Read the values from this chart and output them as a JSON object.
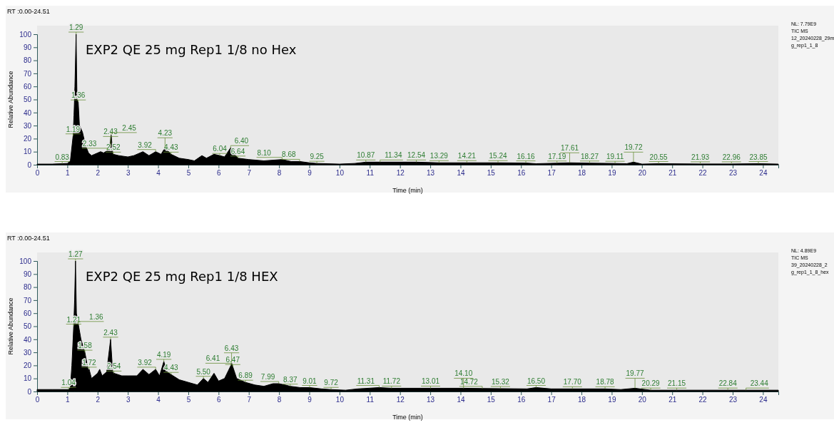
{
  "chart_data": [
    {
      "type": "area",
      "xlabel": "Time (min)",
      "ylabel": "Relative Abundance",
      "xlim": [
        0,
        24.51
      ],
      "ylim": [
        0,
        100
      ],
      "xticks": [
        0,
        1,
        2,
        3,
        4,
        5,
        6,
        7,
        8,
        9,
        10,
        11,
        12,
        13,
        14,
        15,
        16,
        17,
        18,
        19,
        20,
        21,
        22,
        23,
        24
      ],
      "yticks": [
        0,
        10,
        20,
        30,
        40,
        50,
        60,
        70,
        80,
        90,
        100
      ],
      "color": "#000000",
      "x": [
        0,
        0.5,
        0.83,
        1.0,
        1.1,
        1.19,
        1.22,
        1.25,
        1.29,
        1.32,
        1.36,
        1.4,
        1.5,
        1.6,
        1.7,
        1.8,
        1.9,
        2.0,
        2.1,
        2.2,
        2.33,
        2.4,
        2.45,
        2.5,
        2.52,
        2.7,
        3.0,
        3.2,
        3.5,
        3.7,
        3.92,
        4.1,
        4.23,
        4.43,
        4.7,
        5.0,
        5.2,
        5.45,
        5.6,
        5.85,
        6.04,
        6.2,
        6.4,
        6.5,
        6.64,
        7.0,
        7.5,
        8.1,
        8.4,
        8.68,
        9.0,
        9.25,
        10.0,
        10.5,
        10.87,
        11.34,
        12.54,
        13.29,
        14.21,
        15.24,
        16.16,
        16.5,
        17.19,
        17.61,
        18.27,
        19.11,
        19.5,
        19.72,
        20.0,
        20.55,
        21.93,
        22.96,
        23.85,
        24.51
      ],
      "values": [
        0.5,
        0.5,
        0.8,
        1,
        3,
        22,
        38,
        60,
        100,
        50,
        48,
        30,
        25,
        15,
        9,
        7,
        8,
        9,
        10,
        9,
        11,
        14,
        23,
        9,
        8,
        7,
        6,
        7,
        10,
        7,
        10,
        8,
        13,
        8,
        5,
        4,
        3,
        7,
        5,
        8,
        7,
        6,
        13,
        9,
        5,
        4,
        3,
        4,
        2.5,
        2.5,
        1.5,
        1,
        0.5,
        1,
        2,
        2,
        2,
        1.5,
        1.5,
        1.5,
        1.3,
        0.8,
        1.2,
        1.5,
        1.2,
        1,
        0.8,
        2,
        0.5,
        0.8,
        0.6,
        0.6,
        0.8,
        0.5
      ],
      "annotations": [
        "RT :0.00-24.51",
        "EXP2 QE 25 mg Rep1 1/8 no Hex",
        "NL: 7.79E9",
        "TIC  MS",
        "12_20240228_29m",
        "g_rep1_1_8",
        {
          "text": "0.83",
          "x": 0.83,
          "y": 0.8
        },
        {
          "text": "1.19",
          "x": 1.19,
          "y": 22
        },
        {
          "text": "1.29",
          "x": 1.29,
          "y": 100
        },
        {
          "text": "1.36",
          "x": 1.36,
          "y": 48
        },
        {
          "text": "2.33",
          "x": 2.33,
          "y": 11
        },
        {
          "text": "2.43",
          "x": 2.43,
          "y": 14
        },
        {
          "text": "2.45",
          "x": 2.45,
          "y": 23
        },
        {
          "text": "2.52",
          "x": 2.52,
          "y": 8
        },
        {
          "text": "3.92",
          "x": 3.92,
          "y": 10
        },
        {
          "text": "4.23",
          "x": 4.23,
          "y": 13
        },
        {
          "text": "4.43",
          "x": 4.43,
          "y": 8
        },
        {
          "text": "6.04",
          "x": 6.04,
          "y": 7
        },
        {
          "text": "6.40",
          "x": 6.4,
          "y": 13
        },
        {
          "text": "6.64",
          "x": 6.64,
          "y": 5
        },
        {
          "text": "8.10",
          "x": 8.1,
          "y": 4
        },
        {
          "text": "8.68",
          "x": 8.68,
          "y": 2.5
        },
        {
          "text": "9.25",
          "x": 9.25,
          "y": 1
        },
        {
          "text": "10.87",
          "x": 10.87,
          "y": 2
        },
        {
          "text": "11.34",
          "x": 11.34,
          "y": 2
        },
        {
          "text": "12.54",
          "x": 12.54,
          "y": 2
        },
        {
          "text": "13.29",
          "x": 13.29,
          "y": 1.5
        },
        {
          "text": "14.21",
          "x": 14.21,
          "y": 1.5
        },
        {
          "text": "15.24",
          "x": 15.24,
          "y": 1.5
        },
        {
          "text": "16.16",
          "x": 16.16,
          "y": 1.3
        },
        {
          "text": "17.19",
          "x": 17.19,
          "y": 1.2
        },
        {
          "text": "17.61",
          "x": 17.61,
          "y": 1.5
        },
        {
          "text": "18.27",
          "x": 18.27,
          "y": 1.2
        },
        {
          "text": "19.11",
          "x": 19.11,
          "y": 1
        },
        {
          "text": "19.72",
          "x": 19.72,
          "y": 2
        },
        {
          "text": "20.55",
          "x": 20.55,
          "y": 0.8
        },
        {
          "text": "21.93",
          "x": 21.93,
          "y": 0.6
        },
        {
          "text": "22.96",
          "x": 22.96,
          "y": 0.6
        },
        {
          "text": "23.85",
          "x": 23.85,
          "y": 0.8
        }
      ]
    },
    {
      "type": "area",
      "xlabel": "Time (min)",
      "ylabel": "Relative Abundance",
      "xlim": [
        0,
        24.51
      ],
      "ylim": [
        0,
        100
      ],
      "xticks": [
        0,
        1,
        2,
        3,
        4,
        5,
        6,
        7,
        8,
        9,
        10,
        11,
        12,
        13,
        14,
        15,
        16,
        17,
        18,
        19,
        20,
        21,
        22,
        23,
        24
      ],
      "yticks": [
        0,
        10,
        20,
        30,
        40,
        50,
        60,
        70,
        80,
        90,
        100
      ],
      "color": "#000000",
      "x": [
        0,
        0.5,
        1.04,
        1.1,
        1.15,
        1.21,
        1.24,
        1.27,
        1.3,
        1.36,
        1.45,
        1.58,
        1.7,
        1.72,
        1.8,
        1.9,
        2.0,
        2.07,
        2.15,
        2.3,
        2.43,
        2.5,
        2.54,
        2.8,
        3.0,
        3.3,
        3.5,
        3.7,
        3.92,
        4.05,
        4.19,
        4.3,
        4.43,
        4.7,
        5.0,
        5.3,
        5.5,
        5.65,
        5.85,
        6.0,
        6.2,
        6.41,
        6.43,
        6.47,
        6.6,
        6.89,
        7.2,
        7.5,
        7.8,
        7.99,
        8.2,
        8.37,
        8.7,
        9.01,
        9.4,
        9.72,
        10.2,
        10.6,
        11.31,
        11.72,
        13.01,
        14.1,
        14.72,
        15.32,
        16.2,
        16.5,
        17.0,
        17.7,
        18.78,
        19.3,
        19.77,
        20.29,
        21.15,
        22.84,
        23.44,
        24.51
      ],
      "values": [
        1.5,
        1.5,
        1.5,
        3,
        20,
        50,
        70,
        100,
        60,
        52,
        40,
        30,
        15,
        17,
        10,
        12,
        14,
        17,
        12,
        15,
        40,
        15,
        14,
        12,
        12,
        12,
        17,
        13,
        17,
        12,
        23,
        15,
        13,
        9,
        7,
        5,
        10,
        7,
        14,
        8,
        10,
        20,
        22,
        19,
        10,
        7,
        5,
        4,
        6,
        6,
        5,
        4,
        3,
        3,
        2,
        1.5,
        1,
        2,
        3,
        2.5,
        2.5,
        2.5,
        2.3,
        2.2,
        2,
        3,
        2,
        2,
        2,
        1.5,
        2.5,
        1,
        1,
        1,
        1,
        1
      ],
      "annotations": [
        "RT :0.00-24.51",
        "EXP2 QE 25 mg Rep1 1/8 HEX",
        "NL: 4.89E9",
        "TIC  MS",
        "39_20240228_2",
        "g_rep1_1_8_hex",
        {
          "text": "1.04",
          "x": 1.04,
          "y": 1.5
        },
        {
          "text": "1.21",
          "x": 1.21,
          "y": 50
        },
        {
          "text": "1.27",
          "x": 1.27,
          "y": 100
        },
        {
          "text": "1.36",
          "x": 1.36,
          "y": 52
        },
        {
          "text": "1.58",
          "x": 1.58,
          "y": 30
        },
        {
          "text": "1.72",
          "x": 1.72,
          "y": 17
        },
        {
          "text": "2.43",
          "x": 2.43,
          "y": 40
        },
        {
          "text": "2.54",
          "x": 2.54,
          "y": 14
        },
        {
          "text": "3.92",
          "x": 3.92,
          "y": 17
        },
        {
          "text": "4.19",
          "x": 4.19,
          "y": 23
        },
        {
          "text": "4.43",
          "x": 4.43,
          "y": 13
        },
        {
          "text": "5.50",
          "x": 5.5,
          "y": 10
        },
        {
          "text": "6.41",
          "x": 6.41,
          "y": 20
        },
        {
          "text": "6.43",
          "x": 6.43,
          "y": 22
        },
        {
          "text": "6.47",
          "x": 6.47,
          "y": 19
        },
        {
          "text": "6.89",
          "x": 6.89,
          "y": 7
        },
        {
          "text": "7.99",
          "x": 7.99,
          "y": 6
        },
        {
          "text": "8.37",
          "x": 8.37,
          "y": 4
        },
        {
          "text": "9.01",
          "x": 9.01,
          "y": 3
        },
        {
          "text": "9.72",
          "x": 9.72,
          "y": 1.5
        },
        {
          "text": "11.31",
          "x": 11.31,
          "y": 3
        },
        {
          "text": "11.72",
          "x": 11.72,
          "y": 2.5
        },
        {
          "text": "13.01",
          "x": 13.01,
          "y": 2.5
        },
        {
          "text": "14.10",
          "x": 14.1,
          "y": 2.5
        },
        {
          "text": "14.72",
          "x": 14.72,
          "y": 2.3
        },
        {
          "text": "15.32",
          "x": 15.32,
          "y": 2.2
        },
        {
          "text": "16.50",
          "x": 16.5,
          "y": 3
        },
        {
          "text": "17.70",
          "x": 17.7,
          "y": 2
        },
        {
          "text": "18.78",
          "x": 18.78,
          "y": 2
        },
        {
          "text": "19.77",
          "x": 19.77,
          "y": 2.5
        },
        {
          "text": "20.29",
          "x": 20.29,
          "y": 1
        },
        {
          "text": "21.15",
          "x": 21.15,
          "y": 1
        },
        {
          "text": "22.84",
          "x": 22.84,
          "y": 1
        },
        {
          "text": "23.44",
          "x": 23.44,
          "y": 1
        }
      ]
    }
  ]
}
